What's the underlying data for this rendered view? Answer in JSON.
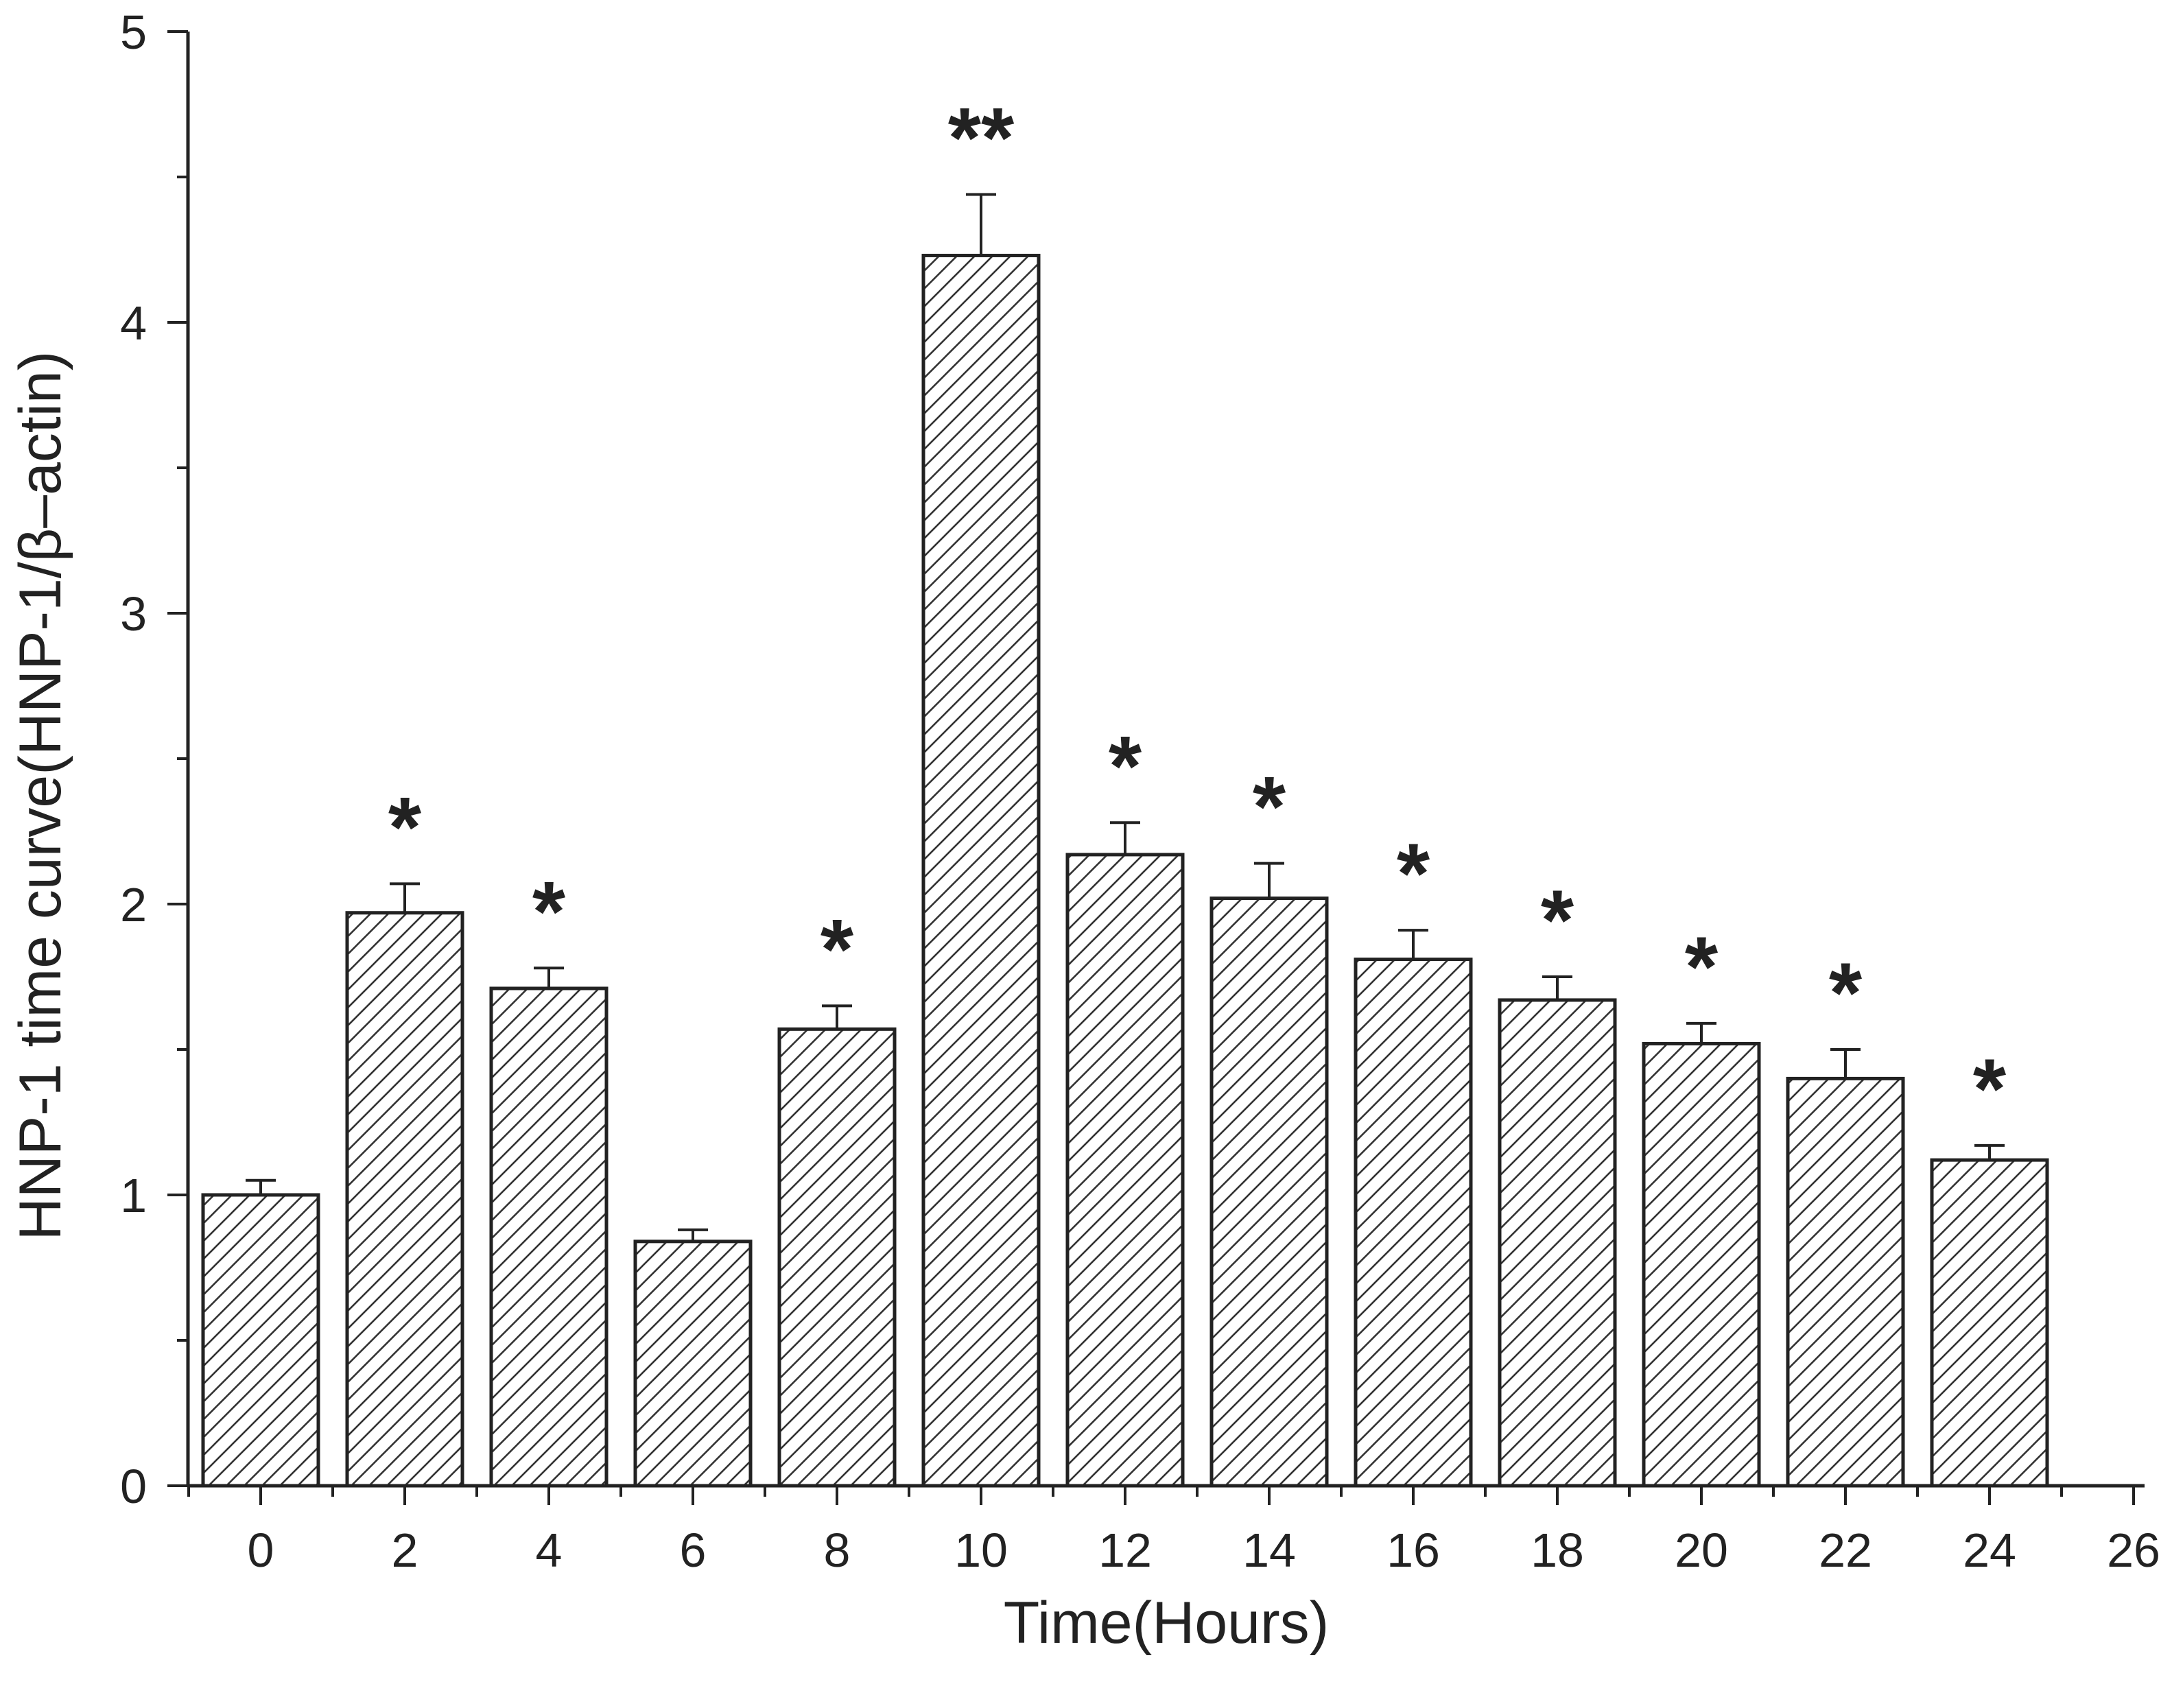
{
  "chart_data": {
    "type": "bar",
    "title": "",
    "xlabel": "Time(Hours)",
    "ylabel": "HNP-1 time curve(HNP-1/β–actin)",
    "x": [
      0,
      2,
      4,
      6,
      8,
      10,
      12,
      14,
      16,
      18,
      20,
      22,
      24
    ],
    "values": [
      1.0,
      1.97,
      1.71,
      0.84,
      1.57,
      4.23,
      2.17,
      2.02,
      1.81,
      1.67,
      1.52,
      1.4,
      1.12
    ],
    "errors": [
      0.05,
      0.1,
      0.07,
      0.04,
      0.08,
      0.21,
      0.11,
      0.12,
      0.1,
      0.08,
      0.07,
      0.1,
      0.05
    ],
    "significance": [
      "",
      "*",
      "*",
      "",
      "*",
      "**",
      "*",
      "*",
      "*",
      "*",
      "*",
      "*",
      "*"
    ],
    "xlim": [
      -1,
      26
    ],
    "ylim": [
      0,
      5
    ],
    "xticks": [
      "0",
      "2",
      "4",
      "6",
      "8",
      "10",
      "12",
      "14",
      "16",
      "18",
      "20",
      "22",
      "24",
      "26"
    ],
    "yticks": [
      "0",
      "1",
      "2",
      "3",
      "4",
      "5"
    ],
    "bar_fill": "hatched",
    "colors": {
      "bar_edge": "#222222",
      "hatch": "#333333",
      "axis": "#222222",
      "text": "#222222"
    },
    "grid": false,
    "legend": "none"
  }
}
